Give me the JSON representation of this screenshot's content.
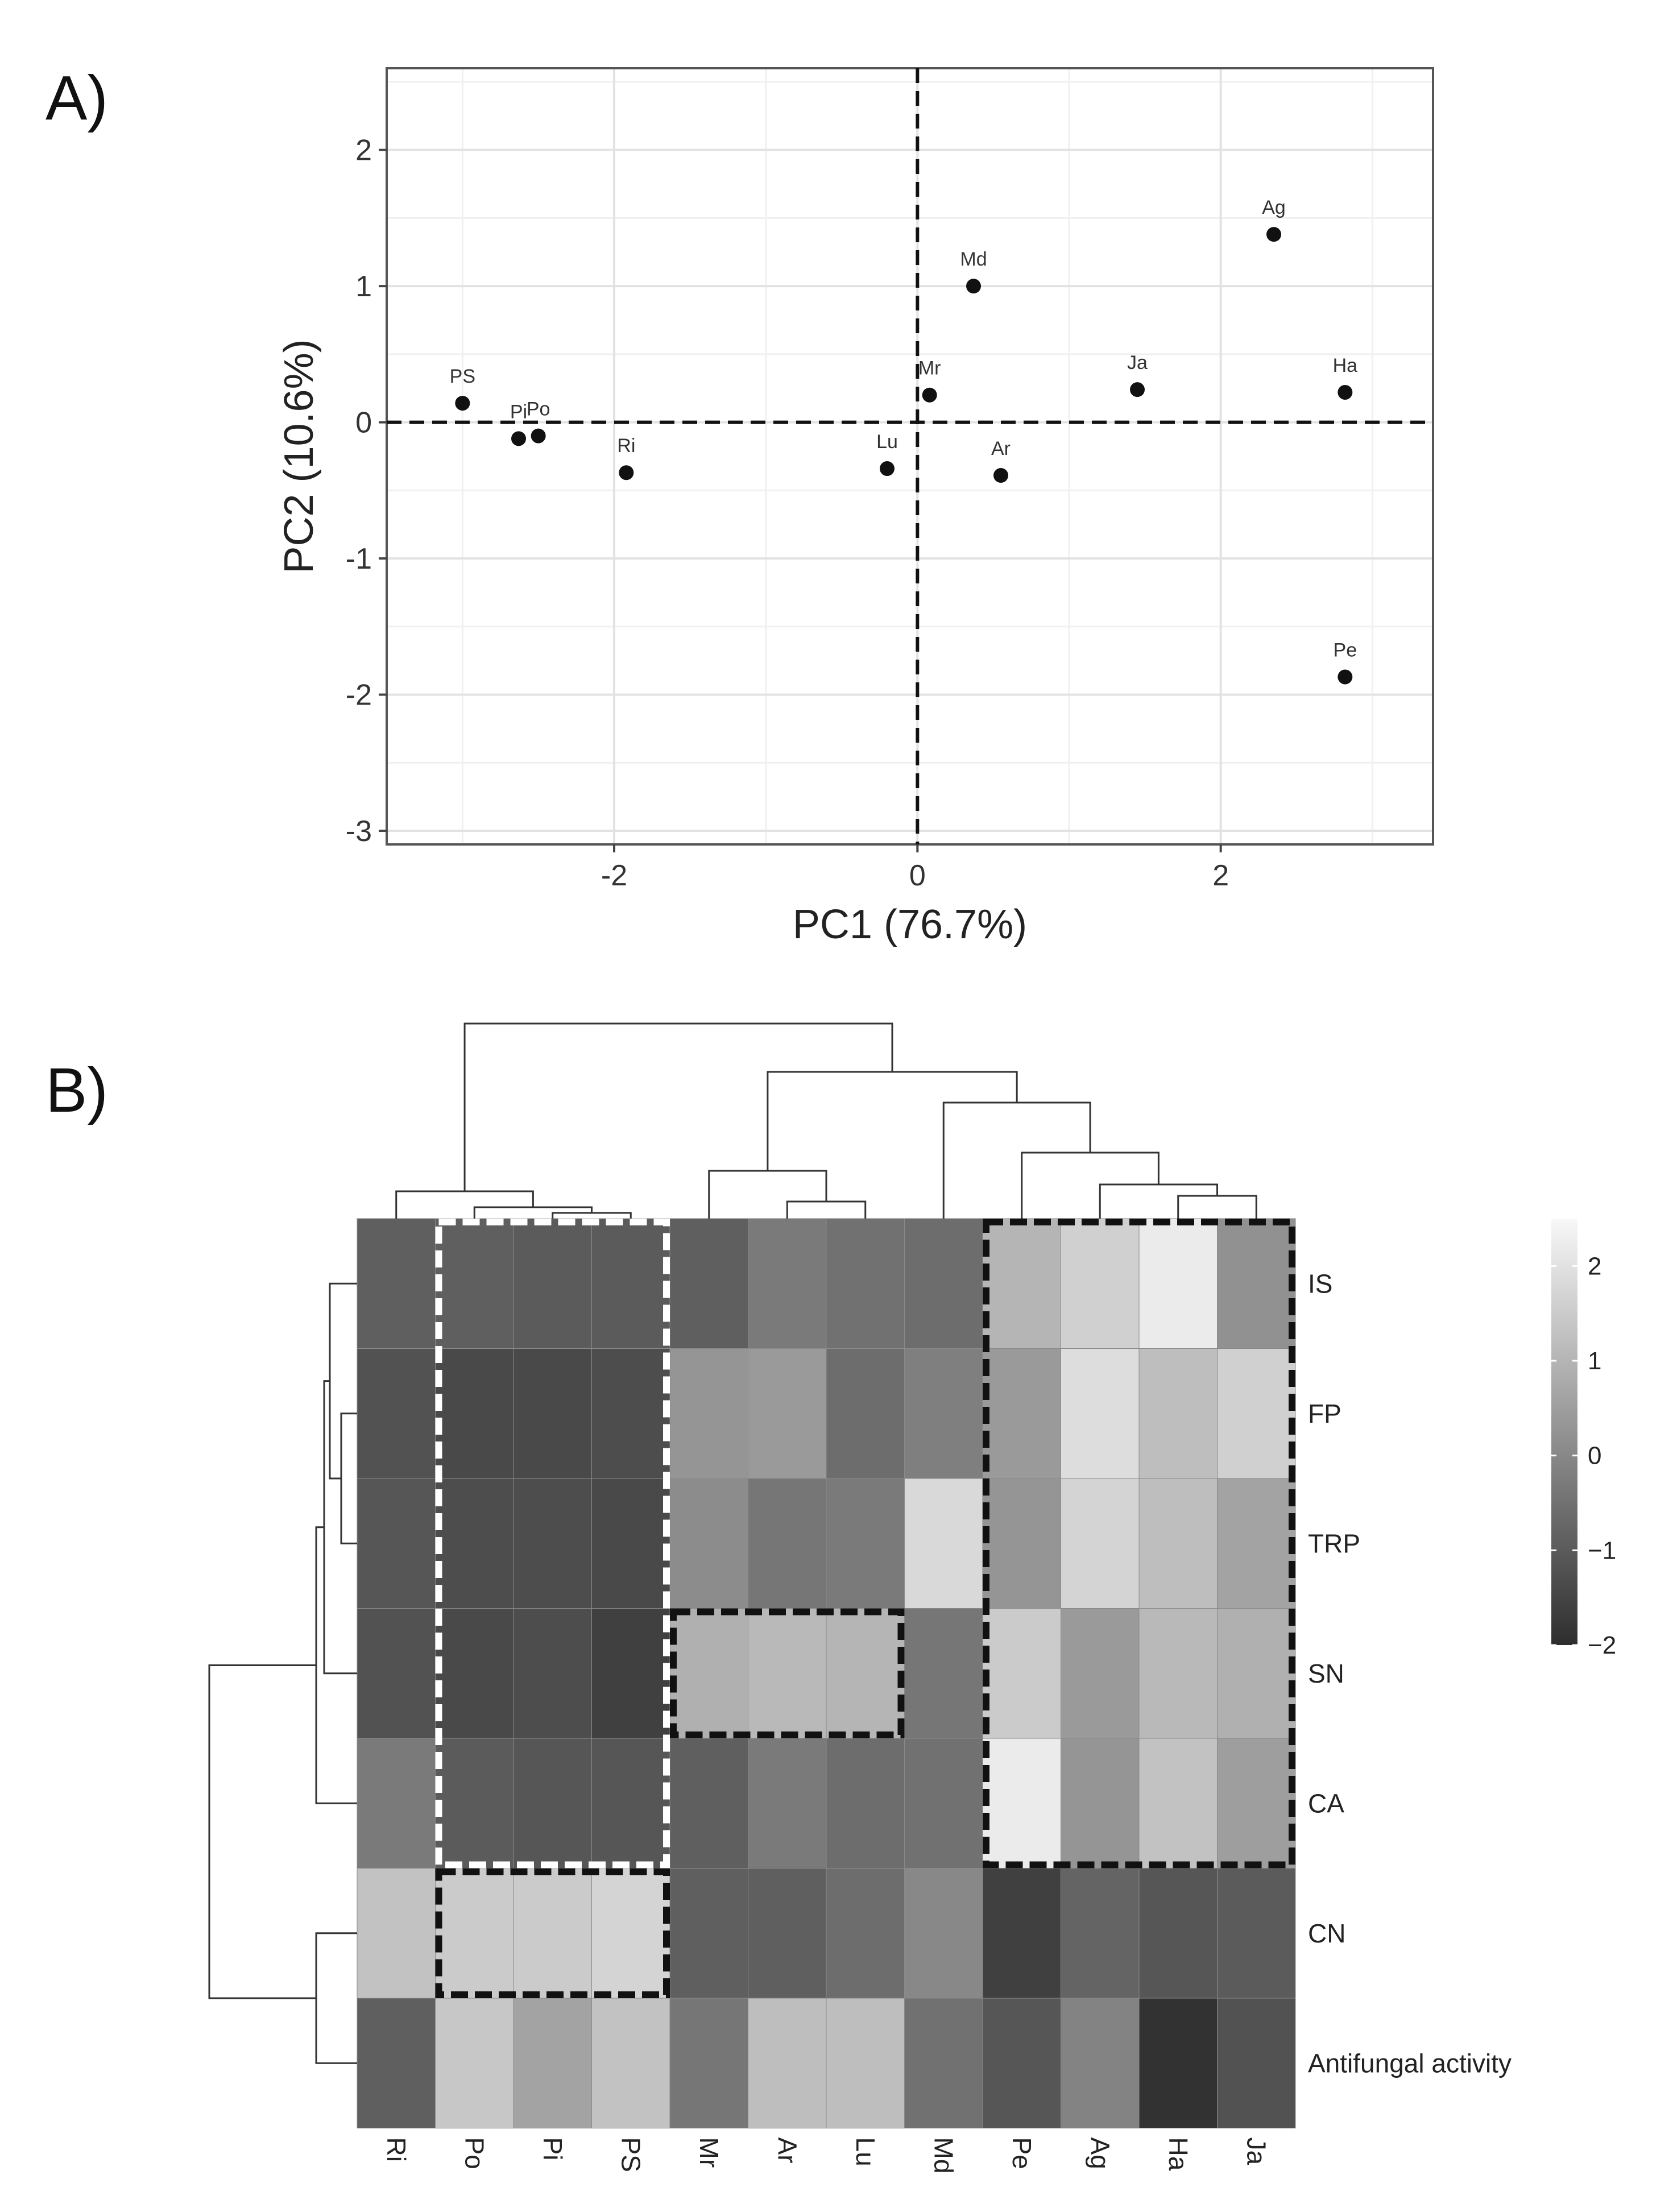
{
  "panels": {
    "a_label": "A)",
    "b_label": "B)"
  },
  "chart_data": [
    {
      "type": "scatter",
      "xlabel": "PC1 (76.7%)",
      "ylabel": "PC2 (10.6%)",
      "xlim": [
        -3.5,
        3.4
      ],
      "ylim": [
        -3.1,
        2.6
      ],
      "x_ticks": [
        -2,
        0,
        2
      ],
      "y_ticks": [
        -3,
        -2,
        -1,
        0,
        1,
        2
      ],
      "reference_lines": {
        "x": 0,
        "y": 0,
        "style": "dashed"
      },
      "grid": true,
      "points": [
        {
          "label": "PS",
          "x": -3.0,
          "y": 0.14
        },
        {
          "label": "Pi",
          "x": -2.63,
          "y": -0.12
        },
        {
          "label": "Po",
          "x": -2.5,
          "y": -0.1
        },
        {
          "label": "Ri",
          "x": -1.92,
          "y": -0.37
        },
        {
          "label": "Lu",
          "x": -0.2,
          "y": -0.34
        },
        {
          "label": "Mr",
          "x": 0.08,
          "y": 0.2
        },
        {
          "label": "Md",
          "x": 0.37,
          "y": 1.0
        },
        {
          "label": "Ar",
          "x": 0.55,
          "y": -0.39
        },
        {
          "label": "Ja",
          "x": 1.45,
          "y": 0.24
        },
        {
          "label": "Ag",
          "x": 2.35,
          "y": 1.38
        },
        {
          "label": "Ha",
          "x": 2.82,
          "y": 0.22
        },
        {
          "label": "Pe",
          "x": 2.82,
          "y": -1.87
        }
      ]
    },
    {
      "type": "heatmap",
      "columns": [
        "Ri",
        "Po",
        "Pi",
        "PS",
        "Mr",
        "Ar",
        "Lu",
        "Md",
        "Pe",
        "Ag",
        "Ha",
        "Ja"
      ],
      "rows": [
        "IS",
        "FP",
        "TRP",
        "SN",
        "CA",
        "CN",
        "Antifungal activity"
      ],
      "values": [
        [
          -0.9,
          -0.9,
          -1.0,
          -1.0,
          -0.9,
          -0.3,
          -0.5,
          -0.6,
          1.0,
          1.6,
          2.2,
          0.2
        ],
        [
          -1.2,
          -1.4,
          -1.4,
          -1.3,
          0.3,
          0.4,
          -0.6,
          -0.2,
          0.4,
          1.9,
          1.2,
          1.6
        ],
        [
          -1.1,
          -1.3,
          -1.3,
          -1.4,
          0.1,
          -0.4,
          -0.3,
          1.8,
          0.3,
          1.7,
          1.2,
          0.6
        ],
        [
          -1.2,
          -1.4,
          -1.3,
          -1.6,
          0.9,
          1.1,
          1.0,
          -0.4,
          1.5,
          0.4,
          1.1,
          0.9
        ],
        [
          -0.3,
          -1.0,
          -1.1,
          -1.1,
          -0.9,
          -0.3,
          -0.6,
          -0.5,
          2.2,
          0.3,
          1.3,
          0.5
        ],
        [
          1.3,
          1.5,
          1.5,
          1.7,
          -0.9,
          -0.9,
          -0.6,
          0.0,
          -1.6,
          -0.8,
          -1.1,
          -1.0
        ],
        [
          -0.9,
          1.4,
          0.6,
          1.3,
          -0.4,
          1.2,
          1.2,
          -0.5,
          -1.1,
          -0.1,
          -1.9,
          -1.2
        ]
      ],
      "colorbar": {
        "ticks": [
          2,
          1,
          0,
          -1,
          -2
        ],
        "tick_labels": [
          "2",
          "1",
          "0",
          "−1",
          "−2"
        ],
        "range": [
          -2,
          2.5
        ],
        "low_color": "#2e2e2e",
        "high_color": "#f8f8f8"
      },
      "highlight_boxes": [
        {
          "rows": [
            "IS",
            "CA"
          ],
          "columns": [
            "Po",
            "PS"
          ],
          "style": "white dashed"
        },
        {
          "rows": [
            "CN",
            "CN"
          ],
          "columns": [
            "Po",
            "PS"
          ],
          "style": "black dashed"
        },
        {
          "rows": [
            "SN",
            "SN"
          ],
          "columns": [
            "Mr",
            "Lu"
          ],
          "style": "black dashed"
        },
        {
          "rows": [
            "IS",
            "CA"
          ],
          "columns": [
            "Pe",
            "Ja"
          ],
          "style": "black dashed"
        }
      ],
      "column_dendrogram": true,
      "row_dendrogram": true
    }
  ]
}
